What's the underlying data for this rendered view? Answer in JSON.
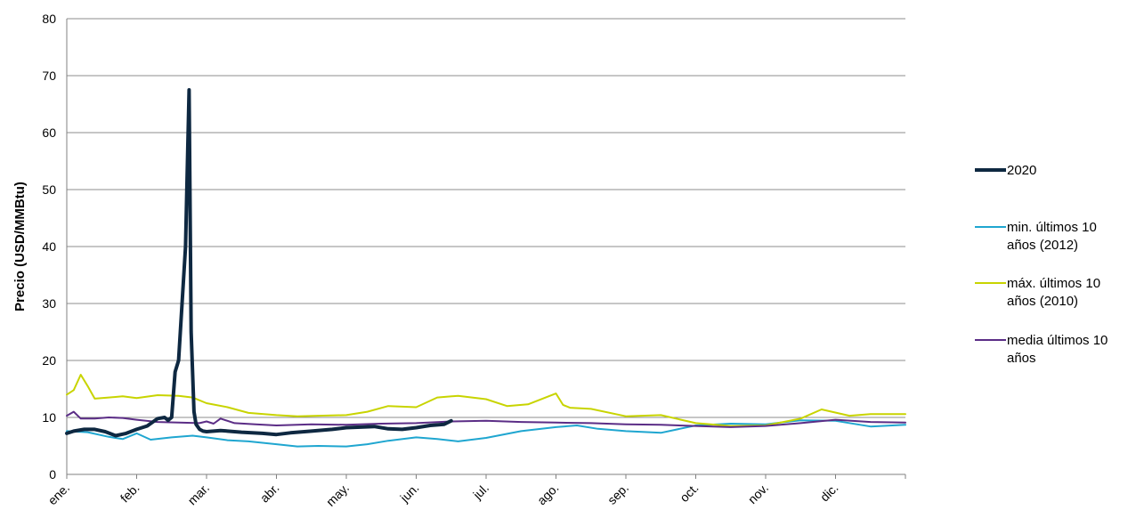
{
  "chart_data": {
    "type": "line",
    "title": "",
    "xlabel": "",
    "ylabel": "Precio (USD/MMBtu)",
    "ylim": [
      0,
      80
    ],
    "yticks": [
      "0",
      "10",
      "20",
      "30",
      "40",
      "50",
      "60",
      "70",
      "80"
    ],
    "categories": [
      "ene.",
      "feb.",
      "mar.",
      "abr.",
      "may.",
      "jun.",
      "jul.",
      "ago.",
      "sep.",
      "oct.",
      "nov.",
      "dic."
    ],
    "x_range_months": [
      0,
      12
    ],
    "grid": "horizontal",
    "legend_position": "right",
    "series": [
      {
        "name": "2020",
        "color": "#0e2841",
        "x": [
          0.0,
          0.1,
          0.25,
          0.4,
          0.55,
          0.7,
          0.85,
          1.0,
          1.15,
          1.3,
          1.4,
          1.45,
          1.5,
          1.55,
          1.6,
          1.65,
          1.7,
          1.75,
          1.78,
          1.82,
          1.85,
          1.9,
          1.95,
          2.0,
          2.2,
          2.5,
          2.8,
          3.0,
          3.2,
          3.5,
          3.8,
          4.0,
          4.2,
          4.4,
          4.6,
          4.8,
          5.0,
          5.2,
          5.4,
          5.5
        ],
        "y": [
          7.2,
          7.6,
          7.9,
          7.9,
          7.5,
          6.8,
          7.2,
          7.9,
          8.5,
          9.8,
          10.0,
          9.5,
          10.0,
          18.0,
          20.0,
          30.0,
          40.0,
          67.5,
          25.0,
          11.0,
          8.8,
          7.9,
          7.6,
          7.5,
          7.7,
          7.4,
          7.2,
          7.0,
          7.3,
          7.6,
          7.9,
          8.2,
          8.3,
          8.4,
          8.0,
          7.9,
          8.2,
          8.6,
          8.8,
          9.4
        ]
      },
      {
        "name": "min. últimos 10 años (2012)",
        "color": "#1fa6d0",
        "x": [
          0.0,
          0.3,
          0.6,
          0.8,
          1.0,
          1.2,
          1.5,
          1.8,
          2.0,
          2.3,
          2.6,
          3.0,
          3.3,
          3.6,
          4.0,
          4.3,
          4.6,
          5.0,
          5.3,
          5.6,
          6.0,
          6.5,
          7.0,
          7.3,
          7.6,
          8.0,
          8.5,
          9.0,
          9.5,
          10.0,
          10.5,
          11.0,
          11.5,
          12.0
        ],
        "y": [
          7.6,
          7.4,
          6.6,
          6.2,
          7.2,
          6.1,
          6.5,
          6.8,
          6.5,
          6.0,
          5.8,
          5.3,
          4.9,
          5.0,
          4.9,
          5.3,
          5.9,
          6.5,
          6.2,
          5.8,
          6.4,
          7.6,
          8.3,
          8.6,
          8.0,
          7.6,
          7.3,
          8.6,
          8.9,
          8.8,
          9.5,
          9.4,
          8.4,
          8.7
        ]
      },
      {
        "name": "máx. últimos 10 años (2010)",
        "color": "#c8d400",
        "x": [
          0.0,
          0.1,
          0.2,
          0.3,
          0.4,
          0.6,
          0.8,
          1.0,
          1.3,
          1.6,
          1.8,
          2.0,
          2.3,
          2.6,
          3.0,
          3.3,
          3.6,
          4.0,
          4.3,
          4.6,
          5.0,
          5.3,
          5.6,
          6.0,
          6.3,
          6.6,
          7.0,
          7.1,
          7.2,
          7.5,
          8.0,
          8.5,
          9.0,
          9.5,
          10.0,
          10.5,
          10.8,
          11.2,
          11.5,
          12.0
        ],
        "y": [
          14.0,
          14.8,
          17.5,
          15.5,
          13.3,
          13.5,
          13.7,
          13.4,
          13.9,
          13.8,
          13.5,
          12.5,
          11.8,
          10.8,
          10.4,
          10.2,
          10.3,
          10.4,
          11.0,
          12.0,
          11.8,
          13.5,
          13.8,
          13.2,
          12.0,
          12.3,
          14.2,
          12.2,
          11.7,
          11.5,
          10.2,
          10.4,
          9.0,
          8.5,
          8.6,
          9.8,
          11.4,
          10.3,
          10.6,
          10.6
        ]
      },
      {
        "name": "media últimos 10 años",
        "color": "#5b2d86",
        "x": [
          0.0,
          0.1,
          0.2,
          0.4,
          0.6,
          0.8,
          1.0,
          1.3,
          1.6,
          1.9,
          2.0,
          2.1,
          2.2,
          2.4,
          2.7,
          3.0,
          3.5,
          4.0,
          4.5,
          5.0,
          5.5,
          6.0,
          6.5,
          7.0,
          7.5,
          8.0,
          8.5,
          9.0,
          9.5,
          10.0,
          10.5,
          11.0,
          11.5,
          12.0
        ],
        "y": [
          10.3,
          11.0,
          9.8,
          9.8,
          10.0,
          9.9,
          9.6,
          9.2,
          9.1,
          9.0,
          9.3,
          8.9,
          9.8,
          9.0,
          8.8,
          8.6,
          8.8,
          8.7,
          8.9,
          9.0,
          9.3,
          9.4,
          9.2,
          9.1,
          9.0,
          8.8,
          8.7,
          8.5,
          8.3,
          8.5,
          9.0,
          9.6,
          9.2,
          9.1
        ]
      }
    ]
  }
}
